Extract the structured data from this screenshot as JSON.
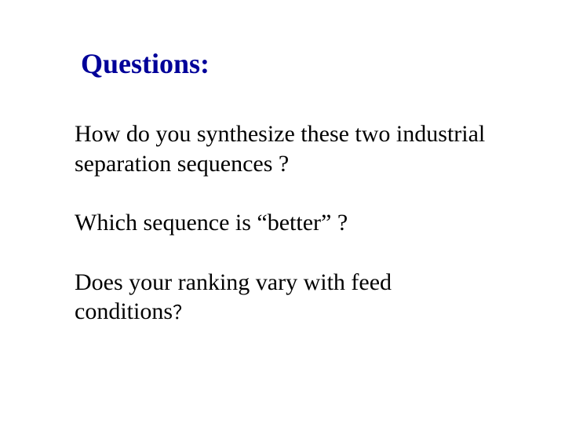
{
  "heading": {
    "text": "Questions:",
    "color": "#000099",
    "fontsize": 36,
    "fontweight": "bold"
  },
  "questions": [
    {
      "text": "How do you synthesize these two industrial separation sequences ?",
      "color": "#000000",
      "fontsize": 30
    },
    {
      "text": "Which sequence is “better” ?",
      "color": "#000000",
      "fontsize": 30
    },
    {
      "prefix": "Does your ranking vary with feed conditions",
      "suffix": "？",
      "color": "#000000",
      "fontsize": 30,
      "suffix_fontsize": 24
    }
  ],
  "background_color": "#ffffff",
  "font_family": "Times New Roman"
}
